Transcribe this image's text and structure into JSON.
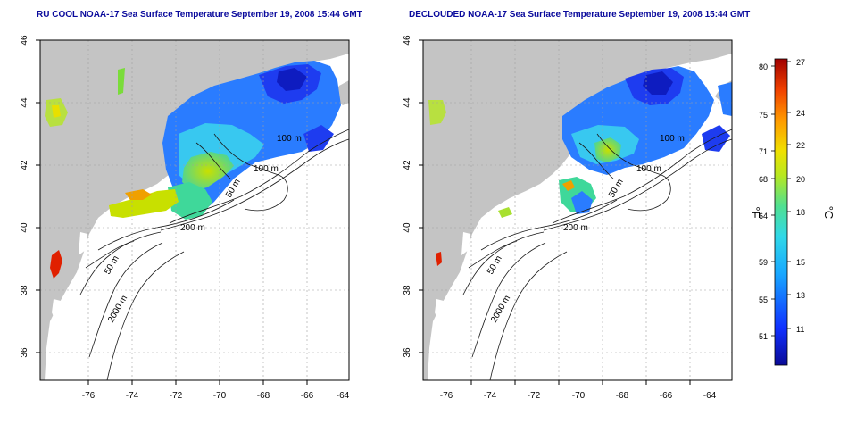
{
  "panels": [
    {
      "title": "RU COOL NOAA-17 Sea Surface Temperature September 19, 2008 15:44 GMT",
      "contour_labels": [
        "100 m",
        "100 m",
        "50 m",
        "200 m",
        "50 m",
        "2000 m"
      ]
    },
    {
      "title": "DECLOUDED NOAA-17 Sea Surface Temperature September 19, 2008 15:44 GMT",
      "contour_labels": [
        "100 m",
        "100 m",
        "50 m",
        "200 m",
        "50 m",
        "2000 m"
      ]
    }
  ],
  "axes": {
    "x_ticks": [
      "-76",
      "-74",
      "-72",
      "-70",
      "-68",
      "-66",
      "-64"
    ],
    "y_ticks": [
      "46",
      "44",
      "42",
      "40",
      "38",
      "36"
    ]
  },
  "colorbar": {
    "unit_f": "°F",
    "unit_c": "°C",
    "f_ticks": [
      "80",
      "75",
      "71",
      "68",
      "64",
      "59",
      "55",
      "51"
    ],
    "c_ticks": [
      "27",
      "24",
      "22",
      "20",
      "18",
      "15",
      "13",
      "11"
    ]
  },
  "colors": {
    "land": "#c4c4c4",
    "ocean": "#ffffff",
    "title": "#0a0a9c",
    "grid": "#a0a0a0"
  }
}
